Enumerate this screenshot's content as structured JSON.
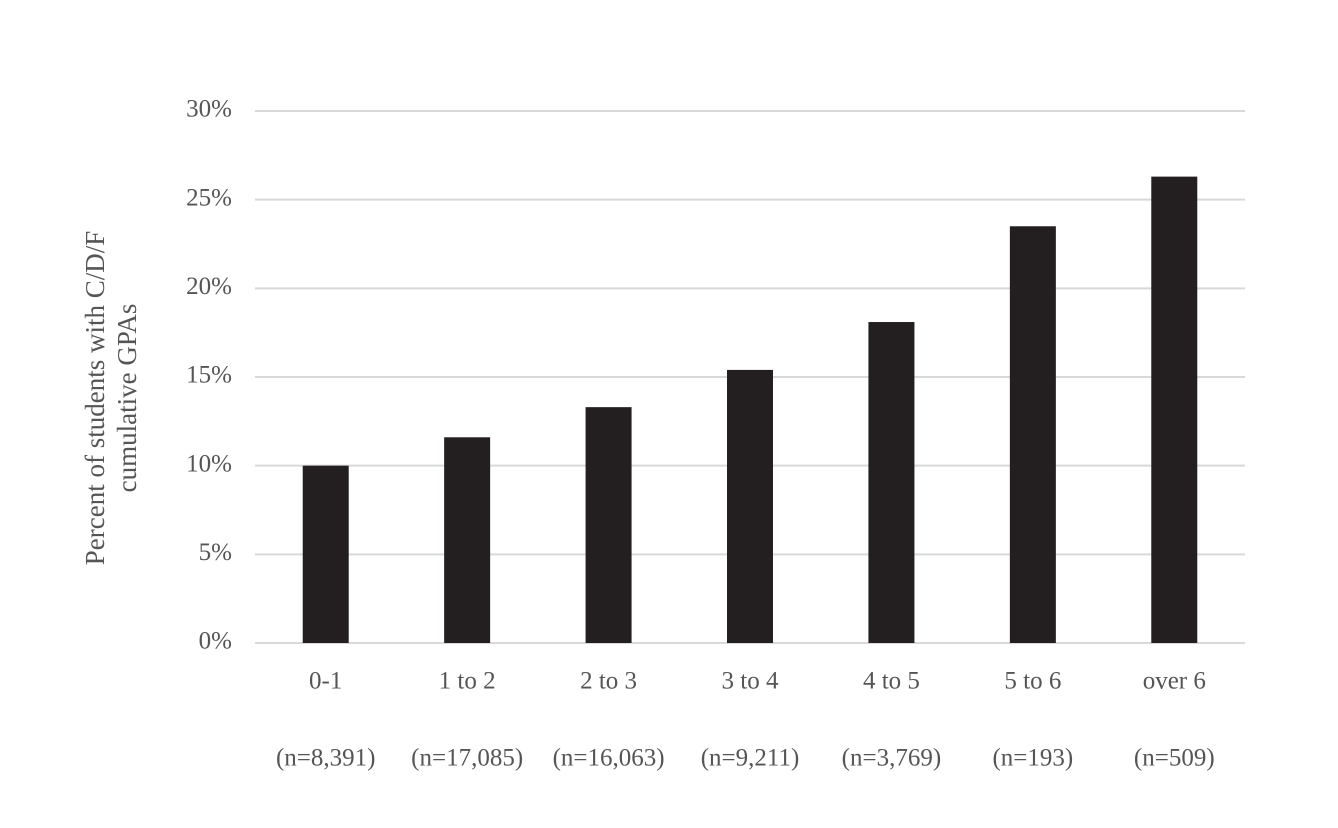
{
  "chart_data": {
    "type": "bar",
    "ylabel": [
      "Percent of students with C/D/F",
      "cumulative GPAs"
    ],
    "categories": [
      "0-1",
      "1 to 2",
      "2 to 3",
      "3 to 4",
      "4 to 5",
      "5 to 6",
      "over 6"
    ],
    "sublabels": [
      "(n=8,391)",
      "(n=17,085)",
      "(n=16,063)",
      "(n=9,211)",
      "(n=3,769)",
      "(n=193)",
      "(n=509)"
    ],
    "values": [
      10.0,
      11.6,
      13.3,
      15.4,
      18.1,
      23.5,
      26.3
    ],
    "color": "#231f20",
    "ylim": [
      0,
      30
    ],
    "yticks": [
      {
        "value": 0,
        "label": "0%"
      },
      {
        "value": 5,
        "label": "5%"
      },
      {
        "value": 10,
        "label": "10%"
      },
      {
        "value": 15,
        "label": "15%"
      },
      {
        "value": 20,
        "label": "20%"
      },
      {
        "value": 25,
        "label": "25%"
      },
      {
        "value": 30,
        "label": "30%"
      }
    ],
    "grid": true
  }
}
